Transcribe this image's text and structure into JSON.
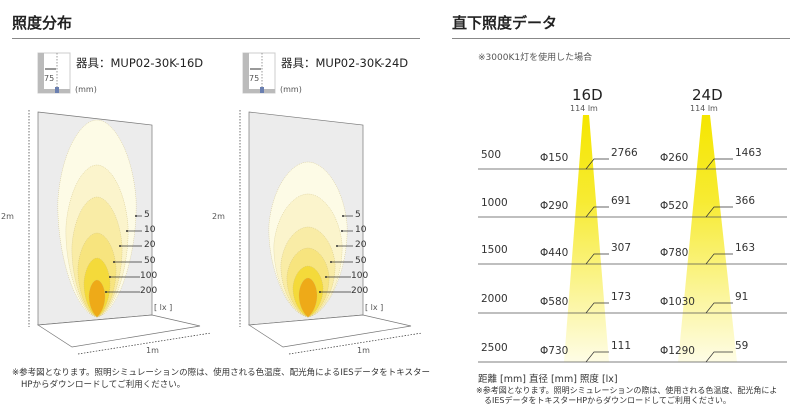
{
  "left": {
    "title": "照度分布",
    "panels": [
      {
        "fixture": "器具：MUP02-30K-16D",
        "offset": "75",
        "unit": "(mm)",
        "height_label": "2m",
        "width_label": "1m",
        "lux_unit": "[ lx ]",
        "contours": [
          "5",
          "10",
          "20",
          "50",
          "100",
          "200"
        ]
      },
      {
        "fixture": "器具：MUP02-30K-24D",
        "offset": "75",
        "unit": "(mm)",
        "height_label": "2m",
        "width_label": "1m",
        "lux_unit": "[ lx ]",
        "contours": [
          "5",
          "10",
          "20",
          "50",
          "100",
          "200"
        ]
      }
    ],
    "note": [
      "※参考図となります。照明シミュレーションの際は、使用される色温度、配光角によるIESデータをトキスター",
      "HPからダウンロードしてご利用ください。"
    ]
  },
  "right": {
    "title": "直下照度データ",
    "condition": "※3000K1灯を使用した場合",
    "beams": [
      {
        "name": "16D",
        "lumen": "114 lm"
      },
      {
        "name": "24D",
        "lumen": "114 lm"
      }
    ],
    "rows": [
      {
        "distance": "500",
        "d16": "Φ150",
        "lx16": "2766",
        "d24": "Φ260",
        "lx24": "1463"
      },
      {
        "distance": "1000",
        "d16": "Φ290",
        "lx16": "691",
        "d24": "Φ520",
        "lx24": "366"
      },
      {
        "distance": "1500",
        "d16": "Φ440",
        "lx16": "307",
        "d24": "Φ780",
        "lx24": "163"
      },
      {
        "distance": "2000",
        "d16": "Φ580",
        "lx16": "173",
        "d24": "Φ1030",
        "lx24": "91"
      },
      {
        "distance": "2500",
        "d16": "Φ730",
        "lx16": "111",
        "d24": "Φ1290",
        "lx24": "59"
      }
    ],
    "legend": "距離 [mm]  直径 [mm]  照度 [lx]",
    "note": [
      "※参考図となります。照明シミュレーションの際は、使用される色温度、配光角によ",
      "るIESデータをトキスターHPからダウンロードしてご利用ください。"
    ],
    "beam_color": "#f5e600"
  },
  "colors": {
    "wall": "#ececec",
    "c5": "#fdfbe6",
    "c10": "#fbf4cc",
    "c20": "#f9eca6",
    "c50": "#f7e47e",
    "c100": "#f4da3a",
    "c200": "#eeaa18"
  }
}
